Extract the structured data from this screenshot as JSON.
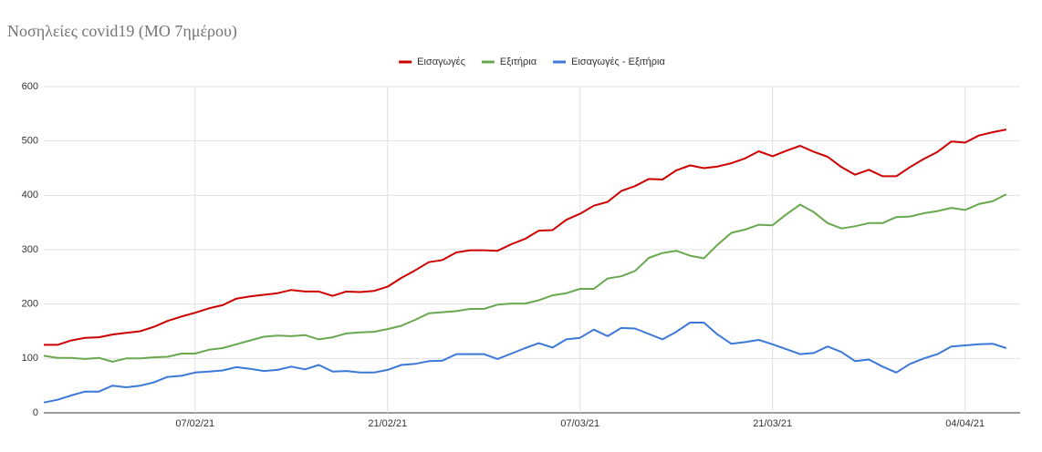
{
  "chart_data": {
    "type": "line",
    "title": "Νοσηλείες covid19 (ΜΟ 7ημέρου)",
    "categories": [
      null,
      null,
      null,
      null,
      null,
      null,
      null,
      null,
      null,
      null,
      null,
      "07/02/21",
      null,
      null,
      null,
      null,
      null,
      null,
      null,
      null,
      null,
      null,
      null,
      null,
      null,
      "21/02/21",
      null,
      null,
      null,
      null,
      null,
      null,
      null,
      null,
      null,
      null,
      null,
      null,
      null,
      "07/03/21",
      null,
      null,
      null,
      null,
      null,
      null,
      null,
      null,
      null,
      null,
      null,
      null,
      null,
      "21/03/21",
      null,
      null,
      null,
      null,
      null,
      null,
      null,
      null,
      null,
      null,
      null,
      null,
      null,
      "04/04/21",
      null,
      null,
      null
    ],
    "series": [
      {
        "name": "Εισαγωγές",
        "color": "#cc0000",
        "values": [
          125,
          125,
          133,
          138,
          139,
          144,
          147,
          150,
          158,
          169,
          177,
          184,
          192,
          198,
          210,
          214,
          217,
          220,
          226,
          223,
          223,
          215,
          223,
          222,
          224,
          232,
          248,
          262,
          277,
          281,
          295,
          299,
          299,
          298,
          310,
          320,
          335,
          336,
          355,
          366,
          381,
          388,
          408,
          417,
          430,
          429,
          446,
          455,
          450,
          453,
          459,
          468,
          481,
          472,
          482,
          491,
          480,
          471,
          452,
          438,
          447,
          435,
          435,
          452,
          467,
          480,
          499,
          497,
          510,
          516,
          521
        ]
      },
      {
        "name": "Εξιτήρια",
        "color": "#6aa84f",
        "values": [
          105,
          101,
          101,
          99,
          101,
          94,
          100,
          100,
          102,
          103,
          109,
          109,
          116,
          119,
          126,
          133,
          140,
          142,
          141,
          143,
          135,
          139,
          146,
          148,
          149,
          154,
          160,
          171,
          183,
          185,
          187,
          191,
          191,
          199,
          201,
          201,
          207,
          216,
          220,
          228,
          228,
          247,
          251,
          261,
          285,
          294,
          298,
          289,
          284,
          309,
          331,
          337,
          346,
          345,
          365,
          383,
          369,
          349,
          339,
          343,
          349,
          349,
          360,
          361,
          367,
          371,
          377,
          373,
          384,
          389,
          402
        ]
      },
      {
        "name": "Εισαγωγές - Εξιτήρια",
        "color": "#3c78d8",
        "values": [
          19,
          24,
          32,
          39,
          39,
          50,
          47,
          50,
          56,
          66,
          68,
          74,
          76,
          78,
          84,
          81,
          77,
          79,
          85,
          80,
          88,
          76,
          77,
          74,
          74,
          79,
          88,
          90,
          95,
          96,
          108,
          108,
          108,
          99,
          109,
          119,
          128,
          120,
          135,
          138,
          153,
          141,
          156,
          155,
          145,
          135,
          149,
          166,
          166,
          144,
          127,
          130,
          134,
          126,
          117,
          108,
          110,
          122,
          112,
          95,
          98,
          85,
          74,
          90,
          100,
          108,
          122,
          124,
          126,
          127,
          119
        ]
      }
    ],
    "ylim": [
      0,
      600
    ],
    "yticks": [
      0,
      100,
      200,
      300,
      400,
      500,
      600
    ],
    "grid": true,
    "legend": "top"
  }
}
